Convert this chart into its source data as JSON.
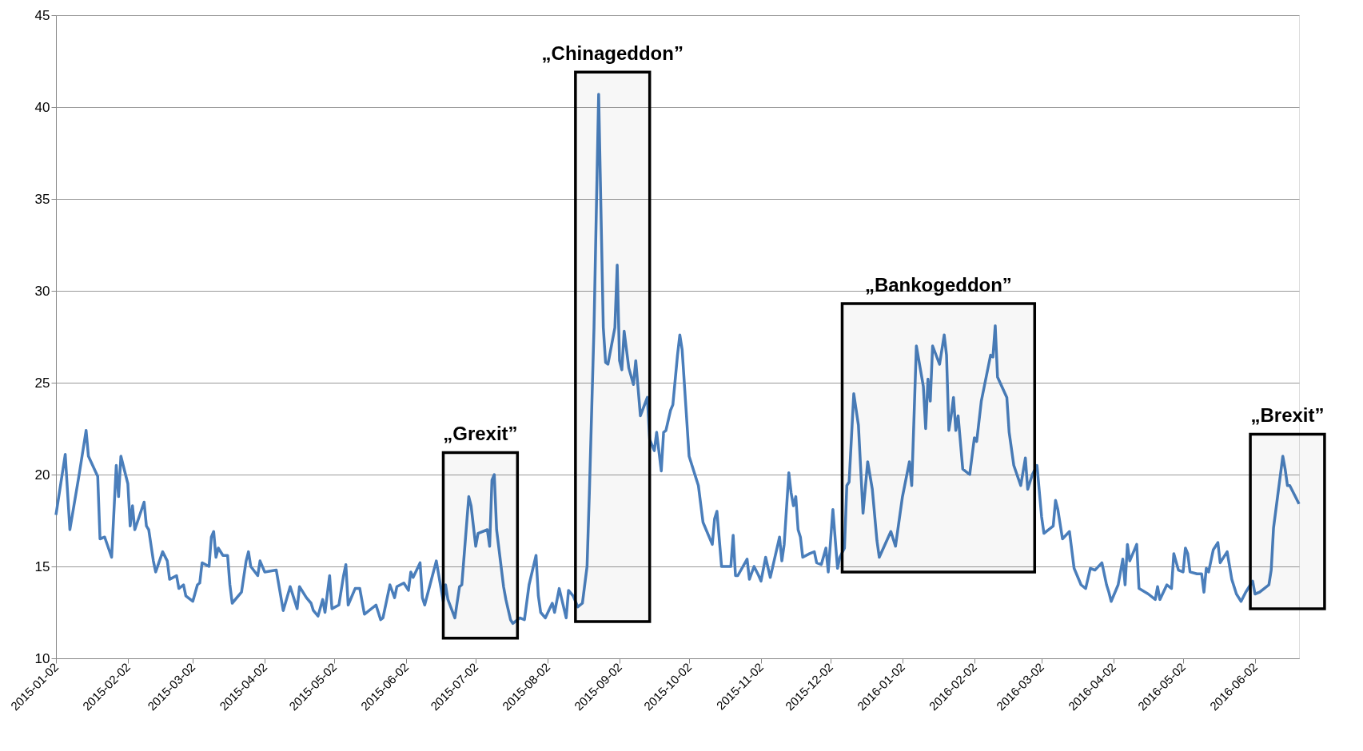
{
  "chart_data": {
    "type": "line",
    "x": [
      "2015-01-02",
      "2015-01-06",
      "2015-01-08",
      "2015-01-12",
      "2015-01-15",
      "2015-01-16",
      "2015-01-20",
      "2015-01-21",
      "2015-01-23",
      "2015-01-26",
      "2015-01-28",
      "2015-01-29",
      "2015-01-30",
      "2015-02-02",
      "2015-02-03",
      "2015-02-04",
      "2015-02-05",
      "2015-02-09",
      "2015-02-10",
      "2015-02-11",
      "2015-02-13",
      "2015-02-14",
      "2015-02-17",
      "2015-02-19",
      "2015-02-20",
      "2015-02-23",
      "2015-02-24",
      "2015-02-26",
      "2015-02-27",
      "2015-03-02",
      "2015-03-04",
      "2015-03-05",
      "2015-03-06",
      "2015-03-09",
      "2015-03-10",
      "2015-03-11",
      "2015-03-12",
      "2015-03-13",
      "2015-03-15",
      "2015-03-17",
      "2015-03-18",
      "2015-03-19",
      "2015-03-23",
      "2015-03-25",
      "2015-03-26",
      "2015-03-27",
      "2015-03-30",
      "2015-03-31",
      "2015-04-02",
      "2015-04-07",
      "2015-04-10",
      "2015-04-13",
      "2015-04-16",
      "2015-04-17",
      "2015-04-20",
      "2015-04-22",
      "2015-04-23",
      "2015-04-25",
      "2015-04-27",
      "2015-04-28",
      "2015-04-30",
      "2015-05-01",
      "2015-05-04",
      "2015-05-06",
      "2015-05-07",
      "2015-05-08",
      "2015-05-11",
      "2015-05-13",
      "2015-05-15",
      "2015-05-20",
      "2015-05-22",
      "2015-05-23",
      "2015-05-26",
      "2015-05-28",
      "2015-05-29",
      "2015-06-01",
      "2015-06-03",
      "2015-06-04",
      "2015-06-05",
      "2015-06-08",
      "2015-06-09",
      "2015-06-10",
      "2015-06-15",
      "2015-06-18",
      "2015-06-19",
      "2015-06-20",
      "2015-06-23",
      "2015-06-25",
      "2015-06-26",
      "2015-06-29",
      "2015-06-30",
      "2015-07-02",
      "2015-07-03",
      "2015-07-07",
      "2015-07-08",
      "2015-07-09",
      "2015-07-10",
      "2015-07-11",
      "2015-07-14",
      "2015-07-15",
      "2015-07-17",
      "2015-07-18",
      "2015-07-21",
      "2015-07-23",
      "2015-07-25",
      "2015-07-28",
      "2015-07-29",
      "2015-07-30",
      "2015-08-01",
      "2015-08-04",
      "2015-08-05",
      "2015-08-07",
      "2015-08-10",
      "2015-08-11",
      "2015-08-13",
      "2015-08-15",
      "2015-08-17",
      "2015-08-19",
      "2015-08-20",
      "2015-08-22",
      "2015-08-24",
      "2015-08-26",
      "2015-08-27",
      "2015-08-28",
      "2015-08-31",
      "2015-09-01",
      "2015-09-02",
      "2015-09-03",
      "2015-09-04",
      "2015-09-06",
      "2015-09-08",
      "2015-09-09",
      "2015-09-11",
      "2015-09-14",
      "2015-09-15",
      "2015-09-17",
      "2015-09-18",
      "2015-09-20",
      "2015-09-21",
      "2015-09-22",
      "2015-09-24",
      "2015-09-25",
      "2015-09-27",
      "2015-09-28",
      "2015-09-29",
      "2015-10-02",
      "2015-10-05",
      "2015-10-06",
      "2015-10-08",
      "2015-10-12",
      "2015-10-13",
      "2015-10-14",
      "2015-10-16",
      "2015-10-20",
      "2015-10-21",
      "2015-10-22",
      "2015-10-23",
      "2015-10-27",
      "2015-10-28",
      "2015-10-30",
      "2015-11-01",
      "2015-11-02",
      "2015-11-04",
      "2015-11-06",
      "2015-11-10",
      "2015-11-11",
      "2015-11-12",
      "2015-11-14",
      "2015-11-15",
      "2015-11-16",
      "2015-11-17",
      "2015-11-18",
      "2015-11-19",
      "2015-11-20",
      "2015-11-23",
      "2015-11-25",
      "2015-11-26",
      "2015-11-28",
      "2015-11-30",
      "2015-12-01",
      "2015-12-03",
      "2015-12-05",
      "2015-12-06",
      "2015-12-08",
      "2015-12-09",
      "2015-12-10",
      "2015-12-12",
      "2015-12-14",
      "2015-12-16",
      "2015-12-18",
      "2015-12-20",
      "2015-12-22",
      "2015-12-23",
      "2015-12-28",
      "2015-12-30",
      "2016-01-02",
      "2016-01-05",
      "2016-01-06",
      "2016-01-08",
      "2016-01-11",
      "2016-01-12",
      "2016-01-13",
      "2016-01-14",
      "2016-01-15",
      "2016-01-18",
      "2016-01-20",
      "2016-01-21",
      "2016-01-22",
      "2016-01-23",
      "2016-01-24",
      "2016-01-25",
      "2016-01-26",
      "2016-01-28",
      "2016-01-31",
      "2016-02-02",
      "2016-02-03",
      "2016-02-05",
      "2016-02-09",
      "2016-02-10",
      "2016-02-11",
      "2016-02-12",
      "2016-02-16",
      "2016-02-17",
      "2016-02-19",
      "2016-02-22",
      "2016-02-24",
      "2016-02-25",
      "2016-02-27",
      "2016-02-29",
      "2016-03-02",
      "2016-03-03",
      "2016-03-07",
      "2016-03-08",
      "2016-03-09",
      "2016-03-11",
      "2016-03-14",
      "2016-03-16",
      "2016-03-19",
      "2016-03-21",
      "2016-03-23",
      "2016-03-25",
      "2016-03-28",
      "2016-03-30",
      "2016-03-31",
      "2016-04-01",
      "2016-04-04",
      "2016-04-06",
      "2016-04-07",
      "2016-04-08",
      "2016-04-09",
      "2016-04-12",
      "2016-04-13",
      "2016-04-17",
      "2016-04-20",
      "2016-04-21",
      "2016-04-22",
      "2016-04-25",
      "2016-04-27",
      "2016-04-28",
      "2016-04-30",
      "2016-05-02",
      "2016-05-03",
      "2016-05-04",
      "2016-05-05",
      "2016-05-08",
      "2016-05-10",
      "2016-05-11",
      "2016-05-12",
      "2016-05-13",
      "2016-05-15",
      "2016-05-17",
      "2016-05-18",
      "2016-05-21",
      "2016-05-23",
      "2016-05-25",
      "2016-05-27",
      "2016-05-29",
      "2016-06-01",
      "2016-06-02",
      "2016-06-04",
      "2016-06-06",
      "2016-06-08",
      "2016-06-09",
      "2016-06-10",
      "2016-06-14",
      "2016-06-15",
      "2016-06-16",
      "2016-06-17",
      "2016-06-21"
    ],
    "series": [
      {
        "color": "#4a7ebb",
        "values": [
          17.8,
          21.1,
          17.0,
          20.0,
          22.4,
          21.0,
          19.9,
          16.5,
          16.6,
          15.5,
          20.5,
          18.8,
          21.0,
          19.5,
          17.2,
          18.3,
          17.0,
          18.5,
          17.2,
          17.0,
          15.3,
          14.7,
          15.8,
          15.3,
          14.3,
          14.5,
          13.8,
          14.0,
          13.4,
          13.1,
          14.0,
          14.1,
          15.2,
          15.0,
          16.6,
          16.9,
          15.5,
          16.0,
          15.6,
          15.6,
          14.0,
          13.0,
          13.6,
          15.3,
          15.8,
          15.0,
          14.5,
          15.3,
          14.7,
          14.8,
          12.6,
          13.9,
          12.7,
          13.9,
          13.3,
          13.0,
          12.6,
          12.3,
          13.2,
          12.5,
          14.5,
          12.7,
          12.9,
          14.5,
          15.1,
          12.9,
          13.8,
          13.8,
          12.4,
          12.9,
          12.1,
          12.2,
          14.0,
          13.3,
          13.9,
          14.1,
          13.7,
          14.7,
          14.4,
          15.2,
          13.3,
          12.9,
          15.3,
          13.1,
          14.0,
          13.2,
          12.2,
          13.9,
          14.0,
          18.8,
          18.3,
          16.1,
          16.8,
          17.0,
          16.1,
          19.7,
          20.0,
          17.0,
          13.9,
          13.2,
          12.1,
          11.9,
          12.2,
          12.1,
          14.0,
          15.6,
          13.4,
          12.5,
          12.2,
          13.0,
          12.5,
          13.8,
          12.2,
          13.7,
          13.4,
          12.8,
          13.0,
          15.0,
          19.0,
          28.0,
          40.7,
          28.0,
          26.1,
          26.0,
          28.0,
          31.4,
          26.2,
          25.7,
          27.8,
          25.8,
          24.9,
          26.2,
          23.2,
          24.2,
          21.9,
          21.3,
          22.3,
          20.2,
          22.3,
          22.4,
          23.5,
          23.8,
          26.5,
          27.6,
          26.8,
          21.0,
          19.8,
          19.4,
          17.4,
          16.2,
          17.6,
          18.0,
          15.0,
          15.0,
          16.7,
          14.5,
          14.5,
          15.4,
          14.3,
          15.0,
          14.5,
          14.2,
          15.5,
          14.4,
          16.6,
          15.3,
          16.2,
          20.1,
          19.0,
          18.3,
          18.8,
          17.0,
          16.6,
          15.5,
          15.7,
          15.8,
          15.2,
          15.1,
          16.0,
          14.7,
          18.1,
          14.9,
          15.5,
          16.0,
          19.4,
          19.6,
          24.4,
          22.7,
          17.9,
          20.7,
          19.2,
          16.4,
          15.5,
          16.9,
          16.1,
          18.8,
          20.7,
          19.4,
          27.0,
          24.8,
          22.5,
          25.2,
          24.0,
          27.0,
          26.0,
          27.6,
          26.5,
          22.4,
          23.2,
          24.2,
          22.4,
          23.2,
          20.3,
          20.0,
          22.0,
          21.8,
          24.0,
          26.5,
          26.4,
          28.1,
          25.3,
          24.2,
          22.3,
          20.5,
          19.4,
          20.9,
          19.2,
          20.0,
          20.5,
          17.7,
          16.8,
          17.2,
          18.6,
          18.1,
          16.5,
          16.9,
          14.9,
          14.0,
          13.8,
          14.9,
          14.8,
          15.2,
          14.0,
          13.6,
          13.1,
          14.0,
          15.4,
          14.0,
          16.2,
          15.3,
          16.2,
          13.8,
          13.5,
          13.2,
          13.9,
          13.2,
          14.0,
          13.8,
          15.7,
          14.8,
          14.7,
          16.0,
          15.7,
          14.7,
          14.6,
          14.6,
          13.6,
          14.9,
          14.7,
          15.9,
          16.3,
          15.2,
          15.8,
          14.3,
          13.5,
          13.1,
          13.6,
          14.2,
          13.5,
          13.6,
          13.8,
          14.0,
          14.8,
          17.1,
          21.0,
          20.3,
          19.4,
          19.4,
          18.4
        ]
      }
    ],
    "xlim": [
      "2015-01-02",
      "2016-06-21"
    ],
    "xticks": [
      "2015-01-02",
      "2015-02-02",
      "2015-03-02",
      "2015-04-02",
      "2015-05-02",
      "2015-06-02",
      "2015-07-02",
      "2015-08-02",
      "2015-09-02",
      "2015-10-02",
      "2015-11-02",
      "2015-12-02",
      "2016-01-02",
      "2016-02-02",
      "2016-03-02",
      "2016-04-02",
      "2016-05-02",
      "2016-06-02"
    ],
    "ylim": [
      10,
      45
    ],
    "yticks": [
      10,
      15,
      20,
      25,
      30,
      35,
      40,
      45
    ],
    "grid": "y",
    "line_style": "solid",
    "marker": "none",
    "bands": [
      {
        "axis": "x",
        "from": "2015-06-18",
        "to": "2015-07-20",
        "label": "„Grexit”",
        "color": "#000000"
      },
      {
        "axis": "x",
        "from": "2015-08-14",
        "to": "2015-09-15",
        "label": "„Chinageddon”",
        "color": "#000000"
      },
      {
        "axis": "x",
        "from": "2015-12-07",
        "to": "2016-02-28",
        "label": "„Bankogeddon”",
        "color": "#000000"
      },
      {
        "axis": "x",
        "from": "2016-05-31",
        "to": "2016-07-02",
        "label": "„Brexit”",
        "color": "#000000"
      }
    ]
  }
}
